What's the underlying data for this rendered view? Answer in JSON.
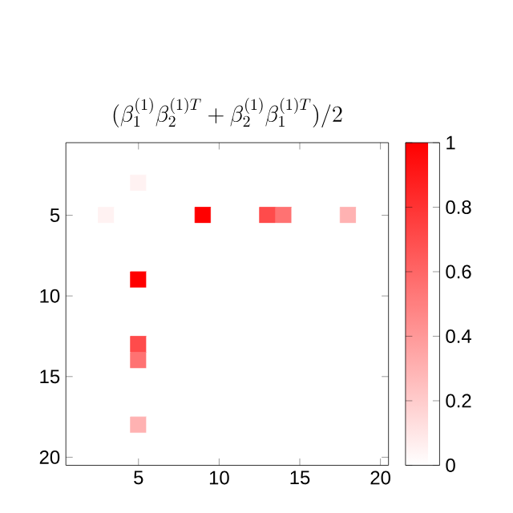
{
  "chart_data": {
    "type": "heatmap",
    "title": "(\\beta_1^{(1)}\\beta_2^{(1)T}+\\beta_2^{(1)}\\beta_1^{(1)T})/2",
    "categories": [
      null,
      null,
      null,
      null,
      "5",
      null,
      null,
      null,
      null,
      "10",
      null,
      null,
      null,
      null,
      "15",
      null,
      null,
      null,
      null,
      "20"
    ],
    "y_categories": [
      null,
      null,
      null,
      null,
      "5",
      null,
      null,
      null,
      null,
      "10",
      null,
      null,
      null,
      null,
      "15",
      null,
      null,
      null,
      null,
      "20"
    ],
    "cells": [
      [
        0,
        0,
        0,
        0,
        0,
        0,
        0,
        0,
        0,
        0,
        0,
        0,
        0,
        0,
        0,
        0,
        0,
        0,
        0,
        0
      ],
      [
        0,
        0,
        0,
        0,
        0,
        0,
        0,
        0,
        0,
        0,
        0,
        0,
        0,
        0,
        0,
        0,
        0,
        0,
        0,
        0
      ],
      [
        0,
        0,
        0,
        0,
        0.05,
        0,
        0,
        0,
        0,
        0,
        0,
        0,
        0,
        0,
        0,
        0,
        0,
        0,
        0,
        0
      ],
      [
        0,
        0,
        0,
        0,
        0,
        0,
        0,
        0,
        0,
        0,
        0,
        0,
        0,
        0,
        0,
        0,
        0,
        0,
        0,
        0
      ],
      [
        0,
        0,
        0.05,
        0,
        0,
        0,
        0,
        0,
        1,
        0,
        0,
        0,
        0.7,
        0.55,
        0,
        0,
        0,
        0.3,
        0,
        0
      ],
      [
        0,
        0,
        0,
        0,
        0,
        0,
        0,
        0,
        0,
        0,
        0,
        0,
        0,
        0,
        0,
        0,
        0,
        0,
        0,
        0
      ],
      [
        0,
        0,
        0,
        0,
        0,
        0,
        0,
        0,
        0,
        0,
        0,
        0,
        0,
        0,
        0,
        0,
        0,
        0,
        0,
        0
      ],
      [
        0,
        0,
        0,
        0,
        0,
        0,
        0,
        0,
        0,
        0,
        0,
        0,
        0,
        0,
        0,
        0,
        0,
        0,
        0,
        0
      ],
      [
        0,
        0,
        0,
        0,
        1,
        0,
        0,
        0,
        0,
        0,
        0,
        0,
        0,
        0,
        0,
        0,
        0,
        0,
        0,
        0
      ],
      [
        0,
        0,
        0,
        0,
        0,
        0,
        0,
        0,
        0,
        0,
        0,
        0,
        0,
        0,
        0,
        0,
        0,
        0,
        0,
        0
      ],
      [
        0,
        0,
        0,
        0,
        0,
        0,
        0,
        0,
        0,
        0,
        0,
        0,
        0,
        0,
        0,
        0,
        0,
        0,
        0,
        0
      ],
      [
        0,
        0,
        0,
        0,
        0,
        0,
        0,
        0,
        0,
        0,
        0,
        0,
        0,
        0,
        0,
        0,
        0,
        0,
        0,
        0
      ],
      [
        0,
        0,
        0,
        0,
        0.7,
        0,
        0,
        0,
        0,
        0,
        0,
        0,
        0,
        0,
        0,
        0,
        0,
        0,
        0,
        0
      ],
      [
        0,
        0,
        0,
        0,
        0.55,
        0,
        0,
        0,
        0,
        0,
        0,
        0,
        0,
        0,
        0,
        0,
        0,
        0,
        0,
        0
      ],
      [
        0,
        0,
        0,
        0,
        0,
        0,
        0,
        0,
        0,
        0,
        0,
        0,
        0,
        0,
        0,
        0,
        0,
        0,
        0,
        0
      ],
      [
        0,
        0,
        0,
        0,
        0,
        0,
        0,
        0,
        0,
        0,
        0,
        0,
        0,
        0,
        0,
        0,
        0,
        0,
        0,
        0
      ],
      [
        0,
        0,
        0,
        0,
        0,
        0,
        0,
        0,
        0,
        0,
        0,
        0,
        0,
        0,
        0,
        0,
        0,
        0,
        0,
        0
      ],
      [
        0,
        0,
        0,
        0,
        0.3,
        0,
        0,
        0,
        0,
        0,
        0,
        0,
        0,
        0,
        0,
        0,
        0,
        0,
        0,
        0
      ],
      [
        0,
        0,
        0,
        0,
        0,
        0,
        0,
        0,
        0,
        0,
        0,
        0,
        0,
        0,
        0,
        0,
        0,
        0,
        0,
        0
      ],
      [
        0,
        0,
        0,
        0,
        0,
        0,
        0,
        0,
        0,
        0,
        0,
        0,
        0,
        0,
        0,
        0,
        0,
        0,
        0,
        0
      ]
    ],
    "clim": [
      0,
      1
    ],
    "cticks": [
      0,
      0.2,
      0.4,
      0.6,
      0.8,
      1
    ]
  }
}
